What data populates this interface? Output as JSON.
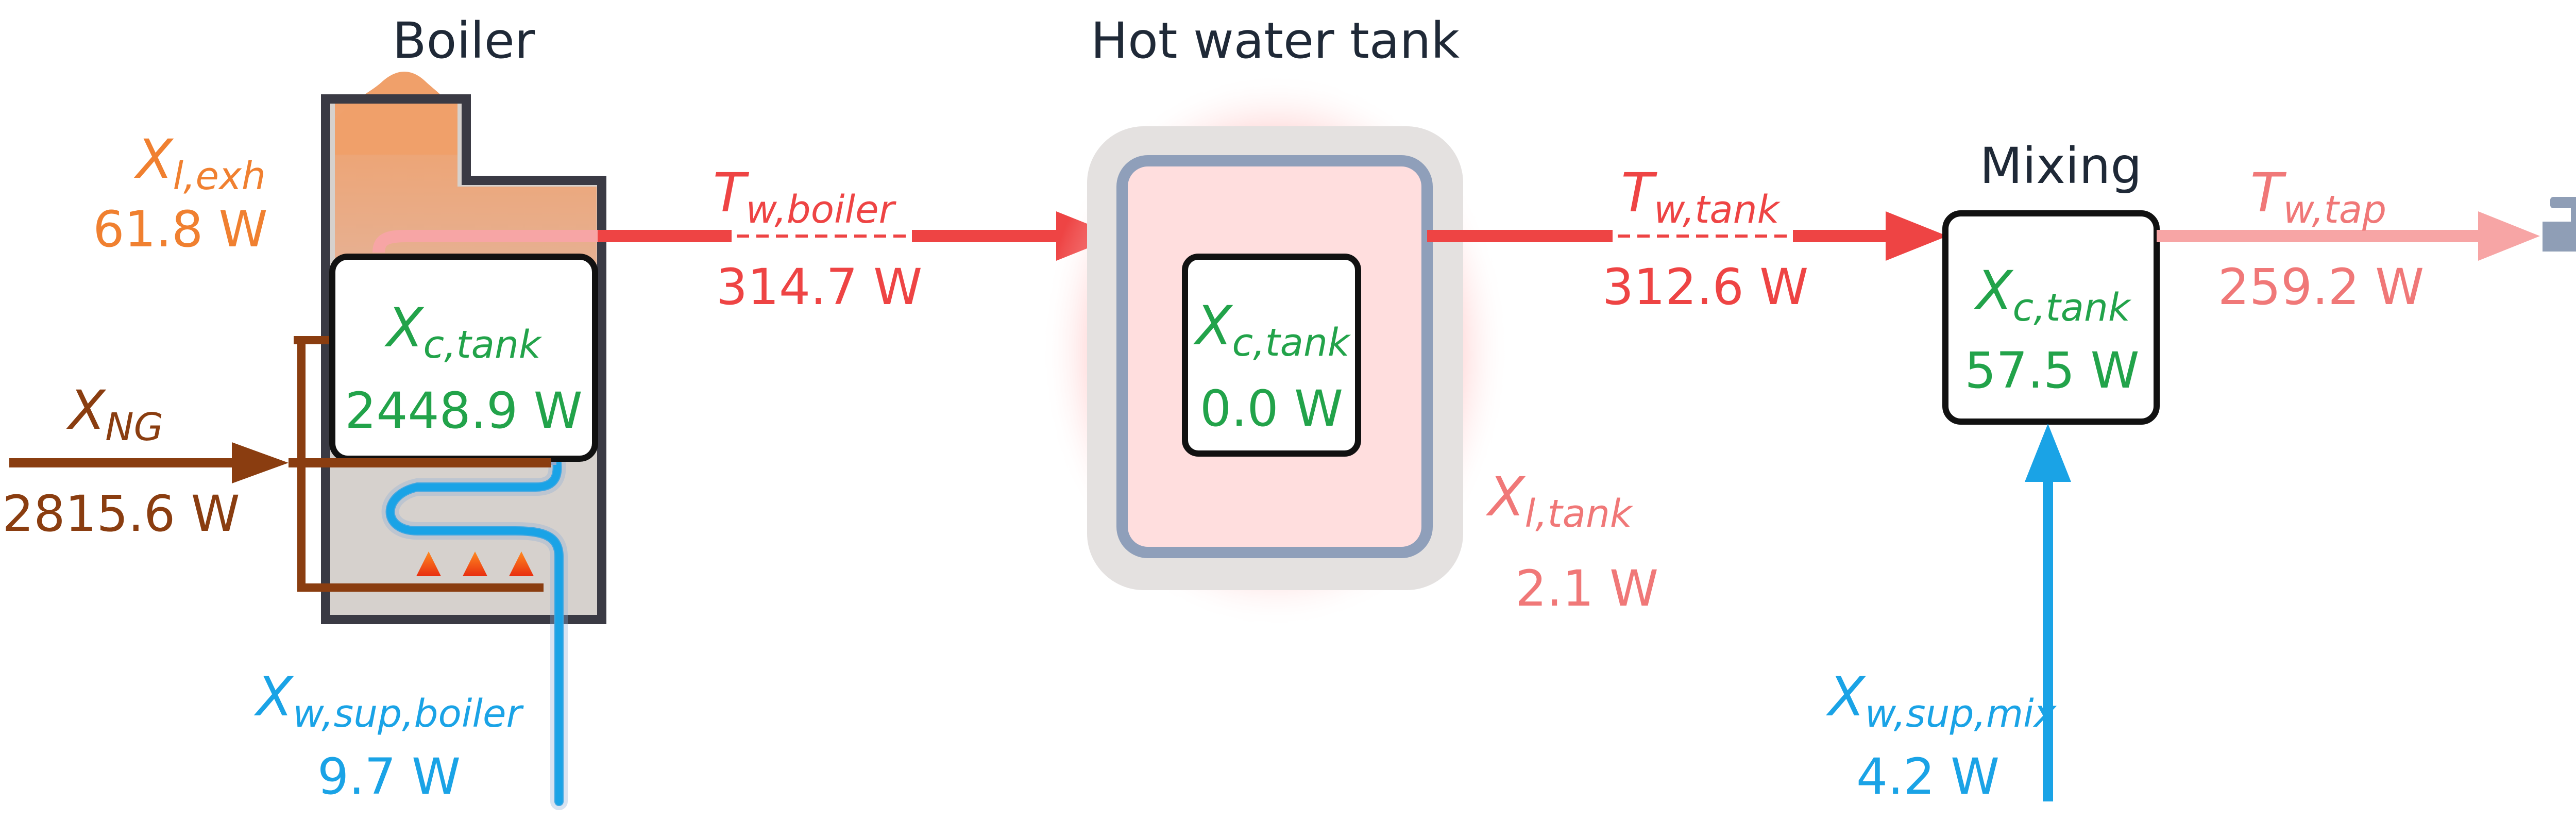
{
  "colors": {
    "heat": "#ee4444",
    "heat_light": "#f7a5a5",
    "heat_text_light": "#f07878",
    "fuel": "#8a3d10",
    "exhaust": "#f08030",
    "water": "#1aa3e6",
    "consumption": "#22a34a",
    "dark": "#1f2937",
    "tap": "#8f9eb6"
  },
  "boiler": {
    "title": "Boiler",
    "consumption": {
      "label_main": "X",
      "label_sub": "c,tank",
      "value": "2448.9 W"
    },
    "exhaust": {
      "label_main": "X",
      "label_sub": "l,exh",
      "value": "61.8 W"
    },
    "fuel": {
      "label_main": "X",
      "label_sub": "NG",
      "value": "2815.6 W"
    },
    "supply": {
      "label_main": "X",
      "label_sub": "w,sup,boiler",
      "value": "9.7 W"
    }
  },
  "boiler_to_tank": {
    "label_main": "T",
    "label_sub": "w,boiler",
    "value": "314.7 W"
  },
  "tank": {
    "title": "Hot water tank",
    "consumption": {
      "label_main": "X",
      "label_sub": "c,tank",
      "value": "0.0 W"
    },
    "loss": {
      "label_main": "X",
      "label_sub": "l,tank",
      "value": "2.1 W"
    }
  },
  "tank_to_mix": {
    "label_main": "T",
    "label_sub": "w,tank",
    "value": "312.6 W"
  },
  "mixing": {
    "title": "Mixing",
    "consumption": {
      "label_main": "X",
      "label_sub": "c,tank",
      "value": "57.5 W"
    },
    "supply": {
      "label_main": "X",
      "label_sub": "w,sup,mix",
      "value": "4.2 W"
    }
  },
  "tap": {
    "label_main": "T",
    "label_sub": "w,tap",
    "value": "259.2 W"
  }
}
